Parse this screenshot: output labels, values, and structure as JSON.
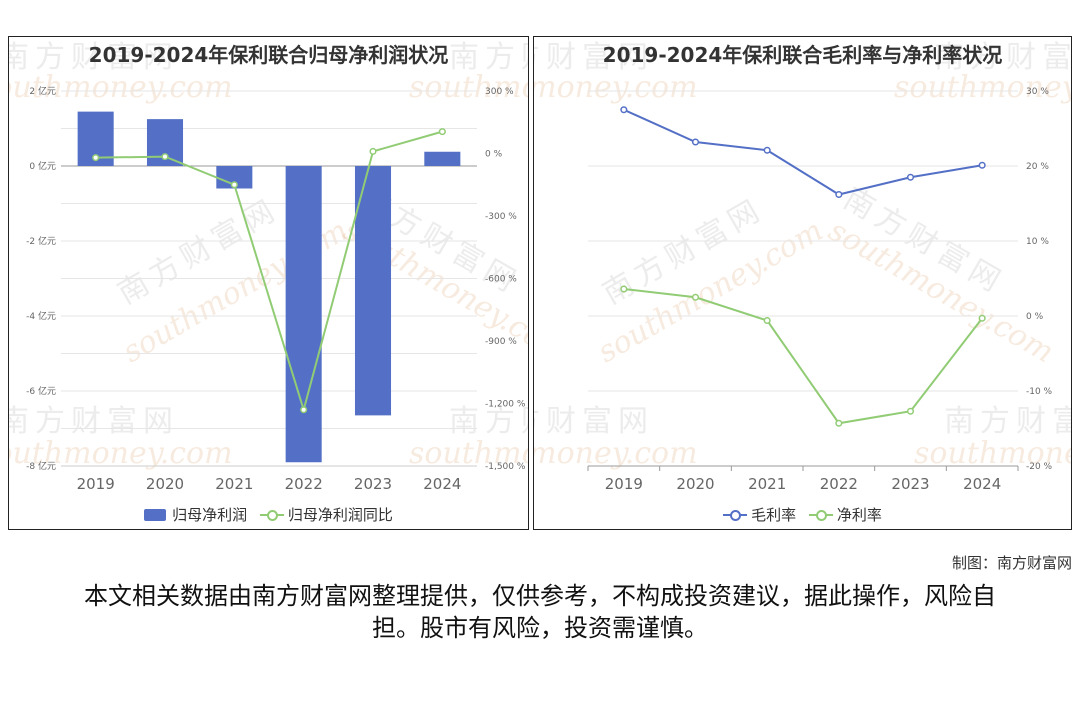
{
  "charts": [
    {
      "title": "2019-2024年保利联合归母净利润状况",
      "legend": [
        "归母净利润",
        "归母净利润同比"
      ]
    },
    {
      "title": "2019-2024年保利联合毛利率与净利率状况",
      "legend": [
        "毛利率",
        "净利率"
      ]
    }
  ],
  "watermark": {
    "cn": "南方财富网",
    "en": "southmoney.com"
  },
  "credit": "制图：南方财富网",
  "disclaimer": "本文相关数据由南方财富网整理提供，仅供参考，不构成投资建议，据此操作，风险自担。股市有风险，投资需谨慎。",
  "colors": {
    "bar": "#5470c6",
    "green": "#91cc75",
    "blue": "#5470c6"
  },
  "chart_data": [
    {
      "type": "bar",
      "title": "2019-2024年保利联合归母净利润状况",
      "categories": [
        "2019",
        "2020",
        "2021",
        "2022",
        "2023",
        "2024"
      ],
      "series": [
        {
          "name": "归母净利润",
          "type": "bar",
          "axis": "left",
          "values": [
            1.45,
            1.25,
            -0.6,
            -7.9,
            -6.65,
            0.38
          ]
        },
        {
          "name": "归母净利润同比",
          "type": "line",
          "axis": "right",
          "values": [
            -20,
            -15,
            -150,
            -1230,
            10,
            105
          ]
        }
      ],
      "left_axis": {
        "min": -8,
        "max": 2,
        "ticks": [
          "2 亿元",
          "0 亿元",
          "-2 亿元",
          "-4 亿元",
          "-6 亿元",
          "-8 亿元"
        ]
      },
      "right_axis": {
        "min": -1500,
        "max": 300,
        "ticks": [
          "300 %",
          "0 %",
          "-300 %",
          "-600 %",
          "-900 %",
          "-1,200 %",
          "-1,500 %"
        ]
      },
      "legend_position": "bottom"
    },
    {
      "type": "line",
      "title": "2019-2024年保利联合毛利率与净利率状况",
      "categories": [
        "2019",
        "2020",
        "2021",
        "2022",
        "2023",
        "2024"
      ],
      "series": [
        {
          "name": "毛利率",
          "values": [
            27.5,
            23.2,
            22.1,
            16.2,
            18.5,
            20.1
          ]
        },
        {
          "name": "净利率",
          "values": [
            3.6,
            2.5,
            -0.6,
            -14.3,
            -12.7,
            -0.3
          ]
        }
      ],
      "right_axis": {
        "min": -20,
        "max": 30,
        "ticks": [
          "30 %",
          "20 %",
          "10 %",
          "0 %",
          "-10 %",
          "-20 %"
        ]
      },
      "legend_position": "bottom"
    }
  ]
}
